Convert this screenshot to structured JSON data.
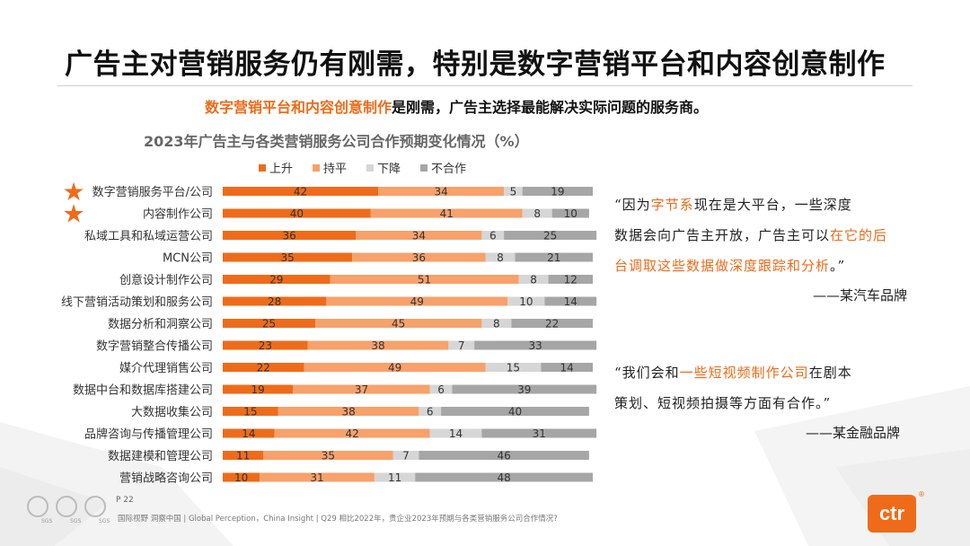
{
  "title": "广告主对营销服务仍有刚需，特别是数字营销平台和内容创意制作",
  "subtitle": {
    "highlight": "数字营销平台和内容创意制作",
    "rest": "是刚需，广告主选择最能解决实际问题的服务商。"
  },
  "colors": {
    "up": "#ef6b1a",
    "flat": "#f7a16b",
    "down": "#d6d6d6",
    "none": "#a6a6a6",
    "accent": "#ef6b1a"
  },
  "chart_data": {
    "type": "bar",
    "orientation": "horizontal-stacked-100",
    "title": "2023年广告主与各类营销服务公司合作预期变化情况（%）",
    "legend_position": "top",
    "categories": [
      "数字营销服务平台/公司",
      "内容制作公司",
      "私域工具和私域运营公司",
      "MCN公司",
      "创意设计制作公司",
      "线下营销活动策划和服务公司",
      "数据分析和洞察公司",
      "数字营销整合传播公司",
      "媒介代理销售公司",
      "数据中台和数据库搭建公司",
      "大数据收集公司",
      "品牌咨询与传播管理公司",
      "数据建模和管理公司",
      "营销战略咨询公司"
    ],
    "starred": [
      true,
      true,
      false,
      false,
      false,
      false,
      false,
      false,
      false,
      false,
      false,
      false,
      false,
      false
    ],
    "series": [
      {
        "name": "上升",
        "values": [
          42,
          40,
          36,
          35,
          29,
          28,
          25,
          23,
          22,
          19,
          15,
          14,
          11,
          10
        ]
      },
      {
        "name": "持平",
        "values": [
          34,
          41,
          34,
          36,
          51,
          49,
          45,
          38,
          49,
          37,
          38,
          42,
          35,
          31
        ]
      },
      {
        "name": "下降",
        "values": [
          5,
          8,
          6,
          8,
          8,
          10,
          8,
          7,
          15,
          6,
          6,
          14,
          7,
          11
        ]
      },
      {
        "name": "不合作",
        "values": [
          19,
          10,
          25,
          21,
          12,
          14,
          22,
          33,
          14,
          39,
          40,
          31,
          46,
          48
        ]
      }
    ]
  },
  "quote1": {
    "line1": "“因为",
    "line1_hl": "字节系",
    "line1_rest": "现在是大平台，一些深度",
    "line2a": "数据会向广告主开放，广告主可以",
    "line2_hl": "在它的后",
    "line3_hl": "台调取这些数据做深度跟踪和分析",
    "line3_rest": "。”",
    "attribution": "——某汽车品牌"
  },
  "quote2": {
    "line1a": "“我们会和",
    "line1_hl": "一些短视频制作公司",
    "line1_rest": "在剧本",
    "line2": "策划、短视频拍摄等方面有合作。”",
    "attribution": "——某金融品牌"
  },
  "footer": {
    "page": "P 22",
    "text": "国际视野  洞察中国 |  Global Perception，China Insight |   Q29 相比2022年，贵企业2023年预期与各类营销服务公司合作情况?",
    "sgs_label": "SGS",
    "logo": "ctr",
    "logo_mark": "®"
  }
}
